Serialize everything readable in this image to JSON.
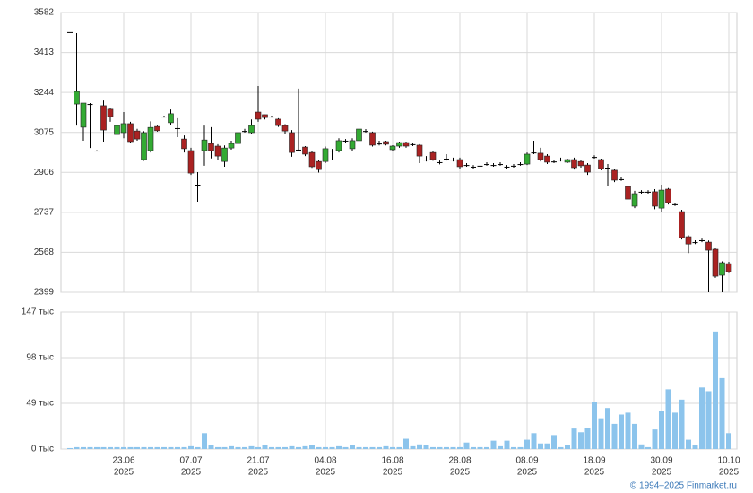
{
  "chart_data": [
    {
      "type": "candlestick",
      "up_color": "#33aa33",
      "down_color": "#aa2222",
      "grid": true,
      "ylim": [
        2399,
        3582
      ],
      "yticks": [
        2399,
        2568,
        2737,
        2906,
        3075,
        3244,
        3413,
        3582
      ],
      "open": [
        3499,
        3195,
        3097,
        3195,
        2998,
        3188,
        3173,
        3066,
        3074,
        3112,
        3081,
        2960,
        2998,
        3100,
        3142,
        3116,
        3093,
        3047,
        2998,
        2854,
        2998,
        3028,
        3017,
        2952,
        3009,
        3028,
        3081,
        3074,
        3161,
        3150,
        3142,
        3131,
        3104,
        3074,
        3002,
        3013,
        2990,
        2952,
        2952,
        2998,
        2998,
        3040,
        3006,
        3040,
        3081,
        3074,
        3028,
        3036,
        3002,
        3017,
        3032,
        3025,
        3021,
        2960,
        2990,
        2949,
        2964,
        2960,
        2960,
        2937,
        2930,
        2934,
        2941,
        2937,
        2941,
        2930,
        2934,
        2941,
        2941,
        2990,
        2987,
        2975,
        2952,
        2960,
        2949,
        2960,
        2952,
        2937,
        2971,
        2960,
        2926,
        2915,
        2877,
        2846,
        2763,
        2824,
        2824,
        2824,
        2755,
        2835,
        2771,
        2740,
        2634,
        2611,
        2619,
        2611,
        2581,
        2471,
        2520
      ],
      "high": [
        3499,
        3495,
        3199,
        3199,
        3000,
        3210,
        3180,
        3154,
        3161,
        3120,
        3090,
        3080,
        3122,
        3104,
        3146,
        3172,
        3135,
        3062,
        3010,
        2907,
        3104,
        3097,
        3025,
        3020,
        3040,
        3085,
        3090,
        3130,
        3271,
        3150,
        3146,
        3135,
        3110,
        3085,
        3260,
        3017,
        2995,
        2960,
        3015,
        3005,
        3050,
        3047,
        3050,
        3097,
        3089,
        3078,
        3040,
        3040,
        3021,
        3036,
        3036,
        3032,
        3025,
        2975,
        2995,
        2956,
        2983,
        2968,
        2968,
        2945,
        2937,
        2941,
        2949,
        2945,
        2949,
        2937,
        2941,
        2949,
        2990,
        3040,
        3010,
        2983,
        2960,
        2968,
        2964,
        2968,
        2960,
        2945,
        2978,
        2964,
        2941,
        2920,
        2885,
        2850,
        2828,
        2831,
        2831,
        2835,
        2854,
        2840,
        2778,
        2748,
        2640,
        2619,
        2626,
        2618,
        2585,
        2530,
        2528
      ],
      "low": [
        3499,
        3104,
        3040,
        3009,
        2995,
        3036,
        3120,
        3028,
        3050,
        3030,
        3040,
        2955,
        2990,
        3078,
        3138,
        3105,
        3055,
        2990,
        2895,
        2782,
        2934,
        2965,
        2960,
        2930,
        3002,
        3020,
        3074,
        3068,
        3120,
        3130,
        3138,
        3098,
        3070,
        2972,
        2995,
        2975,
        2925,
        2905,
        2945,
        2960,
        2990,
        3032,
        2998,
        3035,
        3074,
        3015,
        3020,
        3020,
        2998,
        3010,
        3010,
        3017,
        2945,
        2952,
        2955,
        2940,
        2956,
        2952,
        2922,
        2930,
        2922,
        2926,
        2934,
        2930,
        2934,
        2922,
        2926,
        2934,
        2937,
        2983,
        2952,
        2941,
        2945,
        2952,
        2945,
        2918,
        2926,
        2895,
        2964,
        2915,
        2850,
        2865,
        2870,
        2785,
        2755,
        2816,
        2816,
        2750,
        2740,
        2770,
        2764,
        2622,
        2565,
        2603,
        2611,
        2399,
        2460,
        2399,
        2480
      ],
      "close": [
        3499,
        3248,
        3199,
        3195,
        2998,
        3085,
        3142,
        3104,
        3112,
        3036,
        3047,
        3074,
        3096,
        3082,
        3142,
        3154,
        3093,
        3006,
        2903,
        2854,
        3043,
        2998,
        2975,
        3009,
        3028,
        3074,
        3081,
        3104,
        3131,
        3138,
        3142,
        3104,
        3081,
        2990,
        3002,
        2983,
        2930,
        2918,
        3006,
        2998,
        3040,
        3040,
        3040,
        3089,
        3081,
        3021,
        3028,
        3025,
        3017,
        3032,
        3017,
        3025,
        2975,
        2960,
        2960,
        2949,
        2964,
        2960,
        2930,
        2937,
        2930,
        2934,
        2941,
        2937,
        2941,
        2930,
        2934,
        2941,
        2983,
        2990,
        2960,
        2949,
        2952,
        2960,
        2960,
        2926,
        2934,
        2907,
        2971,
        2922,
        2926,
        2873,
        2877,
        2793,
        2816,
        2824,
        2824,
        2763,
        2831,
        2778,
        2771,
        2630,
        2603,
        2611,
        2619,
        2577,
        2467,
        2524,
        2486
      ]
    },
    {
      "type": "bar",
      "color": "#8cc4ec",
      "grid": true,
      "year": "2025",
      "categories": [
        null,
        null,
        null,
        null,
        null,
        null,
        null,
        null,
        "23.06",
        null,
        null,
        null,
        null,
        null,
        null,
        null,
        null,
        null,
        "07.07",
        null,
        null,
        null,
        null,
        null,
        null,
        null,
        null,
        null,
        "21.07",
        null,
        null,
        null,
        null,
        null,
        null,
        null,
        null,
        null,
        "04.08",
        null,
        null,
        null,
        null,
        null,
        null,
        null,
        null,
        null,
        "16.08",
        null,
        null,
        null,
        null,
        null,
        null,
        null,
        null,
        null,
        "28.08",
        null,
        null,
        null,
        null,
        null,
        null,
        null,
        null,
        null,
        "08.09",
        null,
        null,
        null,
        null,
        null,
        null,
        null,
        null,
        null,
        "18.09",
        null,
        null,
        null,
        null,
        null,
        null,
        null,
        null,
        null,
        "30.09",
        null,
        null,
        null,
        null,
        null,
        null,
        null,
        null,
        null,
        "10.10"
      ],
      "values": [
        1,
        2,
        2,
        2,
        2,
        2,
        2,
        2,
        2,
        2,
        2,
        2,
        2,
        2,
        2,
        2,
        2,
        2,
        3,
        2,
        17,
        4,
        2,
        2,
        3,
        2,
        2,
        3,
        2,
        4,
        2,
        2,
        2,
        3,
        2,
        3,
        4,
        2,
        2,
        2,
        3,
        2,
        4,
        2,
        2,
        2,
        2,
        3,
        2,
        2,
        11,
        3,
        5,
        4,
        2,
        2,
        2,
        2,
        2,
        7,
        2,
        2,
        2,
        9,
        3,
        9,
        2,
        2,
        10,
        17,
        6,
        6,
        15,
        2,
        4,
        22,
        18,
        23,
        50,
        33,
        44,
        27,
        37,
        39,
        27,
        5,
        2,
        21,
        41,
        64,
        39,
        53,
        10,
        4,
        66,
        62,
        126,
        76,
        17
      ],
      "ylim": [
        0,
        147
      ],
      "yticks": [
        {
          "value": 0,
          "label": "0 тыс"
        },
        {
          "value": 49,
          "label": "49 тыс"
        },
        {
          "value": 98,
          "label": "98 тыс"
        },
        {
          "value": 147,
          "label": "147 тыс"
        }
      ]
    }
  ],
  "footer": "© 1994–2025 Finmarket.ru"
}
